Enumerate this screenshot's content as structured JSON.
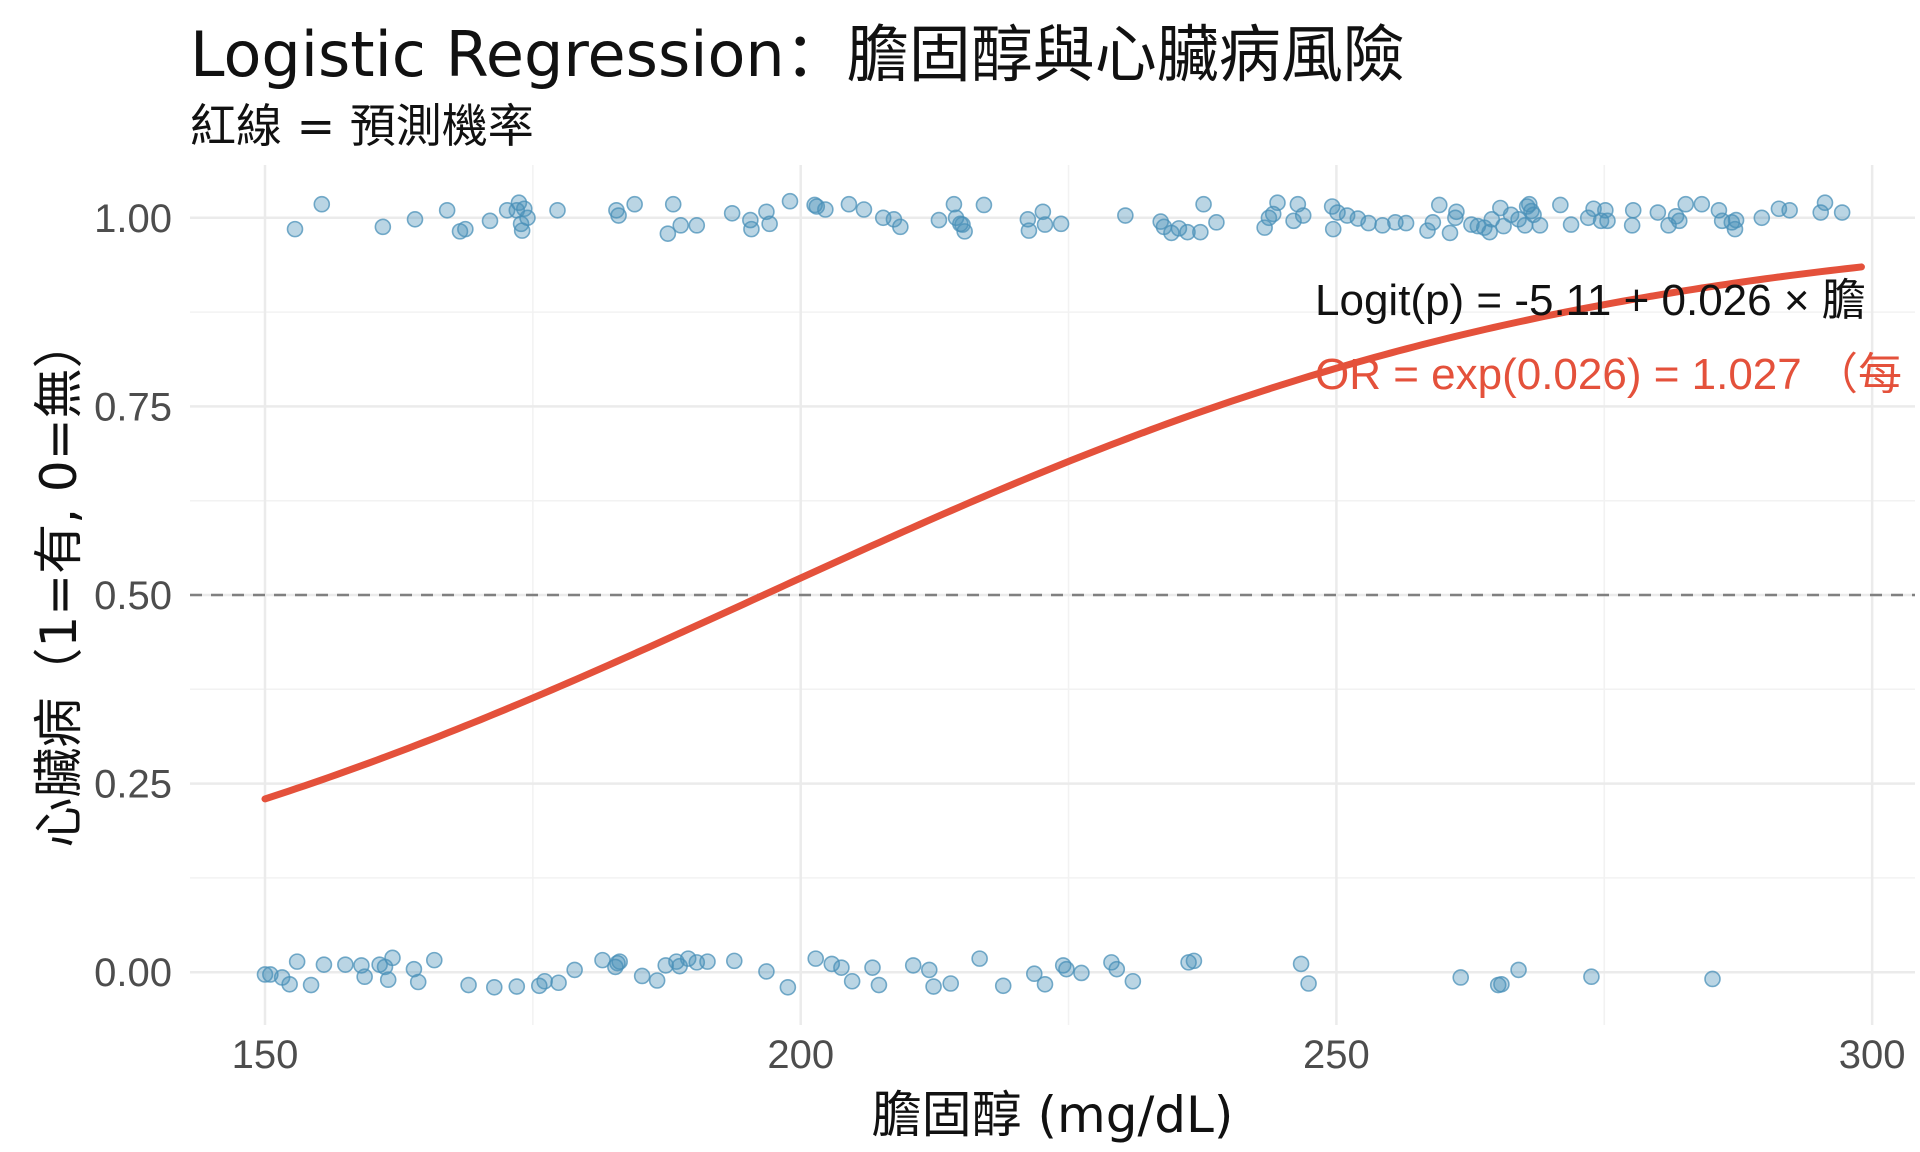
{
  "chart_data": {
    "type": "scatter",
    "title": "Logistic Regression：膽固醇與心臟病風險",
    "subtitle": "紅線 = 預測機率",
    "xlabel": "膽固醇 (mg/dL)",
    "ylabel": "心臟病（1=有, 0=無）",
    "xlim": [
      143,
      304
    ],
    "ylim": [
      -0.07,
      1.07
    ],
    "xticks": [
      150,
      200,
      250,
      300
    ],
    "yticks": [
      0.0,
      0.25,
      0.5,
      0.75,
      1.0
    ],
    "x_tick_labels": [
      "150",
      "200",
      "250",
      "300"
    ],
    "y_tick_labels": [
      "0.00",
      "0.25",
      "0.50",
      "0.75",
      "1.00"
    ],
    "grid": true,
    "reference_line": {
      "y": 0.5,
      "style": "dashed"
    },
    "colors": {
      "points": "#4a90b8",
      "curve": "#e4513b",
      "reference": "#808080",
      "grid": "#ebebeb"
    },
    "model": {
      "intercept": -5.11,
      "slope": 0.026,
      "x_range": [
        150,
        299
      ]
    },
    "annotations": [
      {
        "text": "Logit(p) = -5.11 + 0.026 × 膽",
        "color": "#111111"
      },
      {
        "text": "OR = exp(0.026) = 1.027 （每",
        "color": "#e4513b"
      }
    ],
    "points_y1": [
      [
        152.8,
        0.985
      ],
      [
        155.3,
        1.018
      ],
      [
        161,
        0.988
      ],
      [
        164,
        0.998
      ],
      [
        167,
        1.01
      ],
      [
        168.2,
        0.982
      ],
      [
        168.7,
        0.985
      ],
      [
        171,
        0.996
      ],
      [
        172.6,
        1.01
      ],
      [
        173.5,
        1.01
      ],
      [
        173.7,
        1.02
      ],
      [
        173.9,
        0.992
      ],
      [
        174,
        0.983
      ],
      [
        174.2,
        1.012
      ],
      [
        174.5,
        1.0
      ],
      [
        177.3,
        1.01
      ],
      [
        182.8,
        1.01
      ],
      [
        183,
        1.003
      ],
      [
        184.5,
        1.018
      ],
      [
        187.6,
        0.979
      ],
      [
        188.1,
        1.018
      ],
      [
        188.8,
        0.99
      ],
      [
        190.3,
        0.99
      ],
      [
        193.6,
        1.006
      ],
      [
        195.3,
        0.997
      ],
      [
        195.4,
        0.985
      ],
      [
        196.8,
        1.008
      ],
      [
        197.1,
        0.992
      ],
      [
        199,
        1.022
      ],
      [
        201.3,
        1.017
      ],
      [
        201.5,
        1.015
      ],
      [
        202.3,
        1.011
      ],
      [
        204.5,
        1.018
      ],
      [
        205.9,
        1.011
      ],
      [
        207.7,
        1.0
      ],
      [
        208.7,
        0.998
      ],
      [
        209.3,
        0.988
      ],
      [
        212.9,
        0.997
      ],
      [
        214.3,
        1.018
      ],
      [
        214.5,
        1.0
      ],
      [
        214.9,
        0.992
      ],
      [
        215.1,
        0.991
      ],
      [
        215.3,
        0.982
      ],
      [
        217.1,
        1.017
      ],
      [
        221.2,
        0.998
      ],
      [
        221.3,
        0.983
      ],
      [
        222.6,
        1.008
      ],
      [
        222.8,
        0.991
      ],
      [
        224.3,
        0.992
      ],
      [
        230.3,
        1.003
      ],
      [
        233.6,
        0.995
      ],
      [
        233.9,
        0.988
      ],
      [
        234.6,
        0.98
      ],
      [
        235.3,
        0.986
      ],
      [
        236.1,
        0.981
      ],
      [
        237.3,
        0.981
      ],
      [
        237.6,
        1.018
      ],
      [
        238.8,
        0.994
      ],
      [
        243.3,
        0.987
      ],
      [
        243.7,
        1.0
      ],
      [
        244.1,
        1.005
      ],
      [
        244.5,
        1.02
      ],
      [
        246,
        0.996
      ],
      [
        246.4,
        1.018
      ],
      [
        246.9,
        1.003
      ],
      [
        249.6,
        1.015
      ],
      [
        249.7,
        0.985
      ],
      [
        250.1,
        1.007
      ],
      [
        251,
        1.003
      ],
      [
        252,
        0.999
      ],
      [
        253,
        0.993
      ],
      [
        254.3,
        0.99
      ],
      [
        255.5,
        0.994
      ],
      [
        256.5,
        0.993
      ],
      [
        258.5,
        0.983
      ],
      [
        259,
        0.994
      ],
      [
        259.6,
        1.017
      ],
      [
        260.6,
        0.98
      ],
      [
        261.1,
        1.0
      ],
      [
        261.2,
        1.008
      ],
      [
        262.6,
        0.991
      ],
      [
        263.2,
        0.989
      ],
      [
        263.8,
        0.987
      ],
      [
        264.3,
        0.981
      ],
      [
        264.5,
        0.998
      ],
      [
        265.3,
        1.013
      ],
      [
        265.6,
        0.989
      ],
      [
        266.3,
        1.004
      ],
      [
        267,
        0.998
      ],
      [
        267.6,
        0.99
      ],
      [
        267.8,
        1.015
      ],
      [
        268,
        1.018
      ],
      [
        268.2,
        1.009
      ],
      [
        268.4,
        1.004
      ],
      [
        269,
        0.99
      ],
      [
        270.9,
        1.017
      ],
      [
        271.9,
        0.991
      ],
      [
        273.5,
        1.0
      ],
      [
        274,
        1.012
      ],
      [
        274.7,
        0.996
      ],
      [
        275.1,
        1.01
      ],
      [
        275.3,
        0.996
      ],
      [
        277.7,
        1.01
      ],
      [
        277.6,
        0.99
      ],
      [
        280,
        1.007
      ],
      [
        281,
        0.99
      ],
      [
        281.7,
        1.002
      ],
      [
        282,
        0.996
      ],
      [
        282.6,
        1.018
      ],
      [
        284.1,
        1.018
      ],
      [
        285.7,
        1.01
      ],
      [
        286,
        0.996
      ],
      [
        286.9,
        0.994
      ],
      [
        287.2,
        0.985
      ],
      [
        287.3,
        0.997
      ],
      [
        289.7,
        1.0
      ],
      [
        291.3,
        1.012
      ],
      [
        292.3,
        1.01
      ],
      [
        295.2,
        1.007
      ],
      [
        295.6,
        1.02
      ],
      [
        297.2,
        1.007
      ]
    ],
    "points_y0": [
      [
        150,
        -0.003
      ],
      [
        150.5,
        -0.003
      ],
      [
        151.6,
        -0.007
      ],
      [
        152.3,
        -0.016
      ],
      [
        153,
        0.014
      ],
      [
        154.3,
        -0.017
      ],
      [
        155.5,
        0.01
      ],
      [
        157.5,
        0.01
      ],
      [
        159,
        0.009
      ],
      [
        159.3,
        -0.006
      ],
      [
        160.7,
        0.01
      ],
      [
        161.2,
        0.007
      ],
      [
        161.5,
        -0.01
      ],
      [
        161.9,
        0.019
      ],
      [
        163.9,
        0.004
      ],
      [
        164.3,
        -0.013
      ],
      [
        165.8,
        0.016
      ],
      [
        169,
        -0.017
      ],
      [
        171.4,
        -0.02
      ],
      [
        173.5,
        -0.019
      ],
      [
        175.6,
        -0.018
      ],
      [
        176.1,
        -0.012
      ],
      [
        177.4,
        -0.014
      ],
      [
        178.9,
        0.003
      ],
      [
        181.5,
        0.016
      ],
      [
        182.7,
        0.007
      ],
      [
        182.9,
        0.012
      ],
      [
        183.1,
        0.014
      ],
      [
        185.2,
        -0.005
      ],
      [
        186.6,
        -0.011
      ],
      [
        187.4,
        0.009
      ],
      [
        188.4,
        0.014
      ],
      [
        188.7,
        0.008
      ],
      [
        189.5,
        0.018
      ],
      [
        190.3,
        0.013
      ],
      [
        191.3,
        0.014
      ],
      [
        193.8,
        0.015
      ],
      [
        196.8,
        0.001
      ],
      [
        198.8,
        -0.02
      ],
      [
        201.4,
        0.018
      ],
      [
        202.9,
        0.011
      ],
      [
        203.8,
        0.006
      ],
      [
        204.8,
        -0.012
      ],
      [
        206.7,
        0.006
      ],
      [
        207.3,
        -0.017
      ],
      [
        210.5,
        0.009
      ],
      [
        212,
        0.003
      ],
      [
        212.4,
        -0.019
      ],
      [
        214,
        -0.015
      ],
      [
        216.7,
        0.018
      ],
      [
        218.9,
        -0.018
      ],
      [
        221.8,
        -0.002
      ],
      [
        222.8,
        -0.016
      ],
      [
        224.5,
        0.009
      ],
      [
        224.8,
        0.004
      ],
      [
        226.2,
        -0.001
      ],
      [
        229,
        0.013
      ],
      [
        229.5,
        0.004
      ],
      [
        231,
        -0.012
      ],
      [
        236.2,
        0.013
      ],
      [
        236.7,
        0.015
      ],
      [
        246.7,
        0.011
      ],
      [
        247.4,
        -0.015
      ],
      [
        261.6,
        -0.007
      ],
      [
        265.1,
        -0.017
      ],
      [
        265.4,
        -0.016
      ],
      [
        267,
        0.003
      ],
      [
        273.8,
        -0.006
      ],
      [
        285.1,
        -0.009
      ]
    ]
  }
}
